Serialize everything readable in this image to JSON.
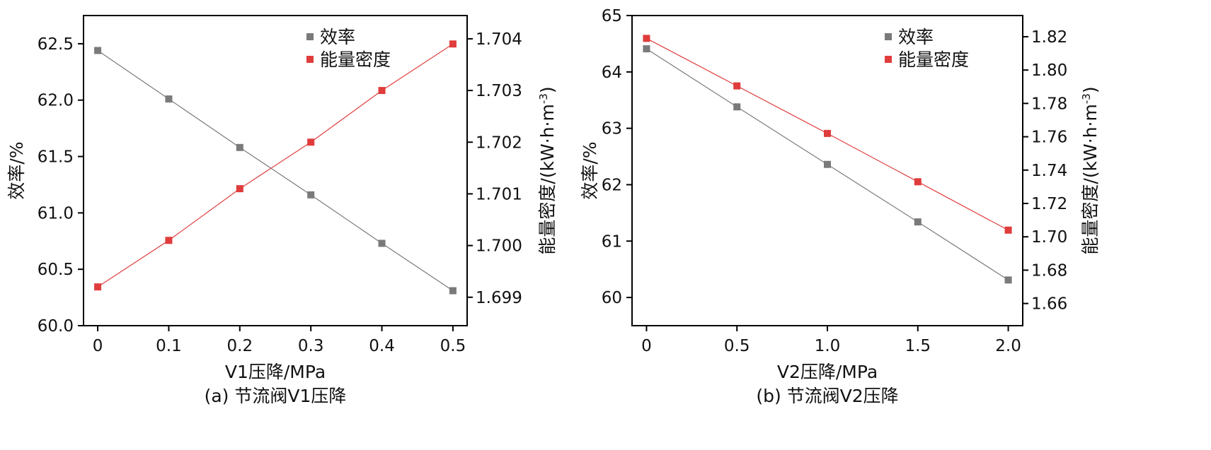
{
  "chart_data": [
    {
      "type": "line",
      "caption": "(a) 节流阀V1压降",
      "xlabel": "V1压降/MPa",
      "ylabel_left": "效率/%",
      "ylabel_right": "能量密度/(kW·h·m",
      "ylabel_right_sup": "-3",
      "ylabel_right_close": ")",
      "x": [
        0,
        0.1,
        0.2,
        0.3,
        0.4,
        0.5
      ],
      "x_ticks": [
        "0",
        "0.1",
        "0.2",
        "0.3",
        "0.4",
        "0.5"
      ],
      "xlim": [
        -0.02,
        0.52
      ],
      "ylim_left": [
        60.0,
        62.75
      ],
      "ylim_right": [
        1.69845,
        1.70445
      ],
      "y_ticks_left": [
        "60.0",
        "60.5",
        "61.0",
        "61.5",
        "62.0",
        "62.5"
      ],
      "y_ticks_right": [
        "1.699",
        "1.700",
        "1.701",
        "1.702",
        "1.703",
        "1.704"
      ],
      "legend_position": "top-right",
      "series": [
        {
          "name": "效率",
          "axis": "left",
          "color": "#7a7a7a",
          "marker": "square",
          "values": [
            62.44,
            62.01,
            61.58,
            61.16,
            60.73,
            60.31
          ]
        },
        {
          "name": "能量密度",
          "axis": "right",
          "color": "#e03c3c",
          "marker": "square",
          "values": [
            1.6992,
            1.7001,
            1.7011,
            1.702,
            1.703,
            1.7039
          ]
        }
      ]
    },
    {
      "type": "line",
      "caption": "(b) 节流阀V2压降",
      "xlabel": "V2压降/MPa",
      "ylabel_left": "效率/%",
      "ylabel_right": "能量密度/(kW·h·m",
      "ylabel_right_sup": "-3",
      "ylabel_right_close": ")",
      "x": [
        0,
        0.5,
        1.0,
        1.5,
        2.0
      ],
      "x_ticks": [
        "0",
        "0.5",
        "1.0",
        "1.5",
        "2.0"
      ],
      "xlim": [
        -0.08,
        2.08
      ],
      "ylim_left": [
        59.5,
        65.0
      ],
      "ylim_right": [
        1.6467,
        1.8327
      ],
      "y_ticks_left": [
        "60",
        "61",
        "62",
        "63",
        "64",
        "65"
      ],
      "y_ticks_right": [
        "1.66",
        "1.68",
        "1.70",
        "1.72",
        "1.74",
        "1.76",
        "1.78",
        "1.80",
        "1.82"
      ],
      "legend_position": "top-right",
      "series": [
        {
          "name": "效率",
          "axis": "left",
          "color": "#7a7a7a",
          "marker": "square",
          "values": [
            64.41,
            63.38,
            62.36,
            61.34,
            60.31
          ]
        },
        {
          "name": "能量密度",
          "axis": "right",
          "color": "#e03c3c",
          "marker": "square",
          "values": [
            1.819,
            1.7905,
            1.762,
            1.733,
            1.704
          ]
        }
      ]
    }
  ]
}
